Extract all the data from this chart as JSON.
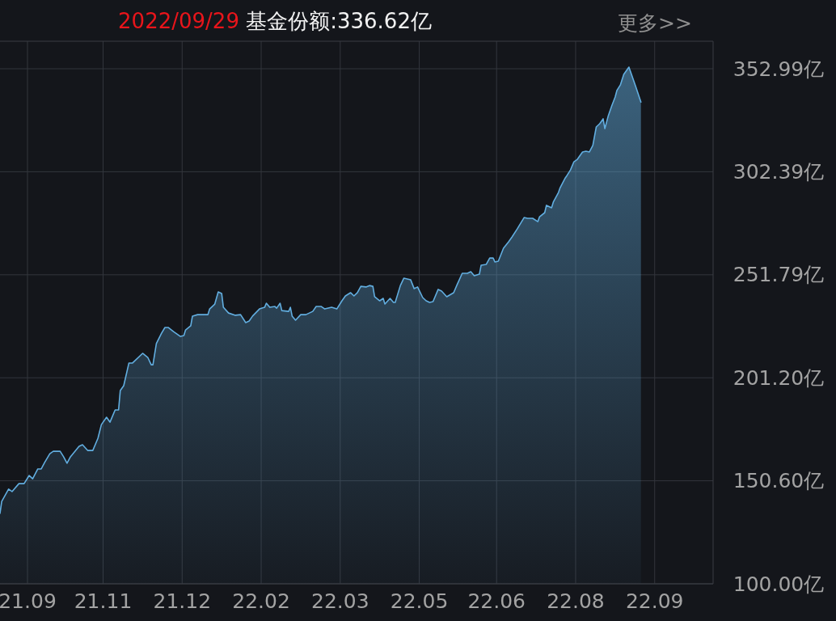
{
  "chart_data": {
    "type": "area",
    "title": "2022/09/29 基金份额:336.62亿",
    "annotations": [
      "更多>>"
    ],
    "color": "#62aee0",
    "xlim": [
      "2021-09-21",
      "2022-11-10"
    ],
    "xticks": [
      {
        "value": "2021-10-07",
        "label": "21.09"
      },
      {
        "value": "2021-11-20",
        "label": "21.11"
      },
      {
        "value": "2022-01-05",
        "label": "21.12"
      },
      {
        "value": "2022-02-20",
        "label": "22.02"
      },
      {
        "value": "2022-04-07",
        "label": "22.03"
      },
      {
        "value": "2022-05-23",
        "label": "22.05"
      },
      {
        "value": "2022-07-07",
        "label": "22.06"
      },
      {
        "value": "2022-08-22",
        "label": "22.08"
      },
      {
        "value": "2022-10-07",
        "label": "22.09"
      }
    ],
    "ylim": [
      100,
      366.5
    ],
    "yticks": [
      {
        "value": 100,
        "label": "100.00亿"
      },
      {
        "value": 150.6,
        "label": "150.60亿"
      },
      {
        "value": 201.2,
        "label": "201.20亿"
      },
      {
        "value": 251.79,
        "label": "251.79亿"
      },
      {
        "value": 302.39,
        "label": "302.39亿"
      },
      {
        "value": 352.99,
        "label": "352.99亿"
      }
    ],
    "grid": true,
    "x": [
      "2021-09-21",
      "2021-09-22",
      "2021-09-26",
      "2021-09-28",
      "2021-10-02",
      "2021-10-05",
      "2021-10-08",
      "2021-10-10",
      "2021-10-13",
      "2021-10-15",
      "2021-10-17",
      "2021-10-20",
      "2021-10-22",
      "2021-10-26",
      "2021-10-28",
      "2021-10-30",
      "2021-11-01",
      "2021-11-06",
      "2021-11-08",
      "2021-11-11",
      "2021-11-14",
      "2021-11-17",
      "2021-11-19",
      "2021-11-22",
      "2021-11-24",
      "2021-11-27",
      "2021-11-29",
      "2021-11-30",
      "2021-12-02",
      "2021-12-05",
      "2021-12-07",
      "2021-12-13",
      "2021-12-16",
      "2021-12-18",
      "2021-12-19",
      "2021-12-21",
      "2021-12-24",
      "2021-12-26",
      "2021-12-28",
      "2021-12-31",
      "2022-01-04",
      "2022-01-06",
      "2022-01-07",
      "2022-01-10",
      "2022-01-11",
      "2022-01-14",
      "2022-01-20",
      "2022-01-21",
      "2022-01-24",
      "2022-01-26",
      "2022-01-28",
      "2022-01-29",
      "2022-02-01",
      "2022-02-05",
      "2022-02-08",
      "2022-02-11",
      "2022-02-13",
      "2022-02-15",
      "2022-02-19",
      "2022-02-22",
      "2022-02-23",
      "2022-02-25",
      "2022-02-28",
      "2022-03-01",
      "2022-03-03",
      "2022-03-04",
      "2022-03-08",
      "2022-03-09",
      "2022-03-10",
      "2022-03-12",
      "2022-03-15",
      "2022-03-18",
      "2022-03-22",
      "2022-03-24",
      "2022-03-27",
      "2022-03-29",
      "2022-04-02",
      "2022-04-05",
      "2022-04-08",
      "2022-04-10",
      "2022-04-13",
      "2022-04-15",
      "2022-04-17",
      "2022-04-19",
      "2022-04-22",
      "2022-04-24",
      "2022-04-26",
      "2022-04-27",
      "2022-04-30",
      "2022-05-02",
      "2022-05-03",
      "2022-05-06",
      "2022-05-08",
      "2022-05-09",
      "2022-05-12",
      "2022-05-14",
      "2022-05-18",
      "2022-05-20",
      "2022-05-22",
      "2022-05-25",
      "2022-05-27",
      "2022-05-29",
      "2022-05-31",
      "2022-06-03",
      "2022-06-05",
      "2022-06-08",
      "2022-06-12",
      "2022-06-14",
      "2022-06-17",
      "2022-06-20",
      "2022-06-22",
      "2022-06-24",
      "2022-06-27",
      "2022-06-28",
      "2022-07-01",
      "2022-07-03",
      "2022-07-05",
      "2022-07-06",
      "2022-07-08",
      "2022-07-11",
      "2022-07-14",
      "2022-07-16",
      "2022-07-19",
      "2022-07-23",
      "2022-07-25",
      "2022-07-28",
      "2022-07-31",
      "2022-08-01",
      "2022-08-04",
      "2022-08-05",
      "2022-08-08",
      "2022-08-09",
      "2022-08-12",
      "2022-08-13",
      "2022-08-16",
      "2022-08-17",
      "2022-08-19",
      "2022-08-21",
      "2022-08-23",
      "2022-08-26",
      "2022-08-28",
      "2022-08-30",
      "2022-09-01",
      "2022-09-03",
      "2022-09-05",
      "2022-09-07",
      "2022-09-08",
      "2022-09-10",
      "2022-09-12",
      "2022-09-14",
      "2022-09-15",
      "2022-09-17",
      "2022-09-19",
      "2022-09-22",
      "2022-09-23",
      "2022-09-26",
      "2022-09-29"
    ],
    "values": [
      134.6,
      140.5,
      146.5,
      145.3,
      149.2,
      149.2,
      153.2,
      151.6,
      156.4,
      156.4,
      159.6,
      163.9,
      165.1,
      165.1,
      162.4,
      159.2,
      162.4,
      167.5,
      168.3,
      165.5,
      165.5,
      171.5,
      178.2,
      181.8,
      179.4,
      185.4,
      185.4,
      194.9,
      197.3,
      208.4,
      208.4,
      213.2,
      211.2,
      207.6,
      207.6,
      218.0,
      223.1,
      225.9,
      225.9,
      223.9,
      221.5,
      221.9,
      224.7,
      226.7,
      231.5,
      232.2,
      232.2,
      235.0,
      237.4,
      243.4,
      242.6,
      235.8,
      233.0,
      231.9,
      232.2,
      228.3,
      229.1,
      231.5,
      235.0,
      235.8,
      237.8,
      235.8,
      236.2,
      235.4,
      237.8,
      234.2,
      233.8,
      235.8,
      231.5,
      229.5,
      232.2,
      232.2,
      233.8,
      236.2,
      236.2,
      235.0,
      235.8,
      235.0,
      239.0,
      241.4,
      243.0,
      241.4,
      243.0,
      246.1,
      245.8,
      246.5,
      246.1,
      241.0,
      239.0,
      240.2,
      237.4,
      240.2,
      238.2,
      238.2,
      246.5,
      250.1,
      249.3,
      245.0,
      245.8,
      240.6,
      239.0,
      238.2,
      238.6,
      244.6,
      243.8,
      241.0,
      243.0,
      246.9,
      252.5,
      252.5,
      253.3,
      251.3,
      252.1,
      256.5,
      256.9,
      260.0,
      260.0,
      258.1,
      258.5,
      264.8,
      268.0,
      270.4,
      274.3,
      279.9,
      279.5,
      279.5,
      277.9,
      280.3,
      282.3,
      285.9,
      284.7,
      287.5,
      292.2,
      294.6,
      299.4,
      300.6,
      303.3,
      307.3,
      308.5,
      312.1,
      312.5,
      312.1,
      315.3,
      324.4,
      326.0,
      328.4,
      323.6,
      329.9,
      334.7,
      339.1,
      342.3,
      345.0,
      350.2,
      353.8,
      351.4,
      344.2,
      336.62
    ]
  }
}
